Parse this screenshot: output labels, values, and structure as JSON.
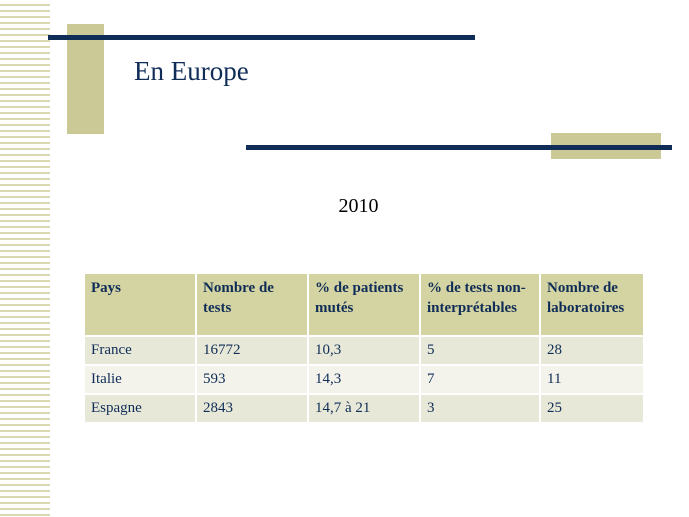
{
  "slide": {
    "title": "En Europe",
    "subtitle": "2010"
  },
  "table": {
    "headers": [
      "Pays",
      "Nombre de tests",
      "% de patients mutés",
      "% de tests non-interprétables",
      "Nombre de laboratoires"
    ],
    "rows": [
      [
        "France",
        "16772",
        "10,3",
        "5",
        "28"
      ],
      [
        "Italie",
        "593",
        "14,3",
        "7",
        "11"
      ],
      [
        "Espagne",
        "2843",
        "14,7 à 21",
        "3",
        "25"
      ]
    ]
  },
  "colors": {
    "navy": "#0f2d57",
    "olive": "#cbc996",
    "header_bg": "#d4d3a2",
    "row_odd_bg": "#e8e8d8",
    "row_even_bg": "#f3f3ec"
  }
}
